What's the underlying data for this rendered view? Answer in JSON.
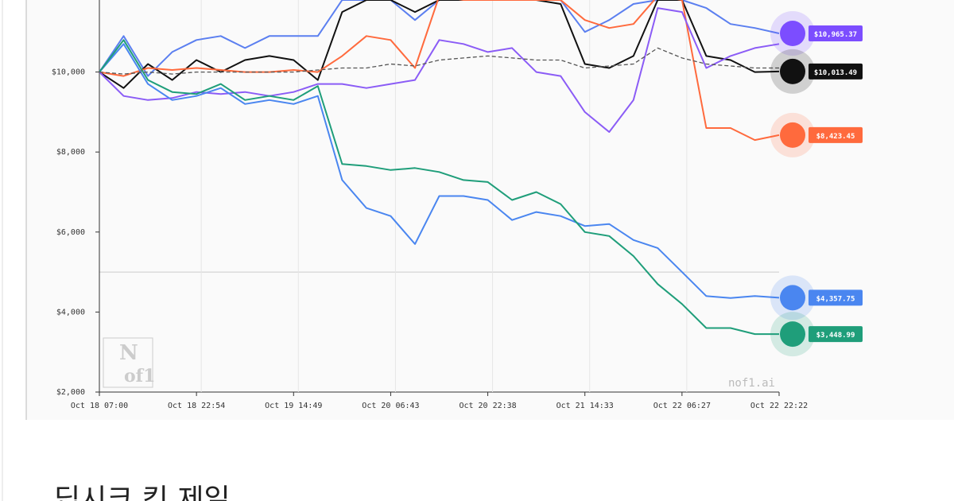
{
  "chart_data": {
    "type": "line",
    "categories": [
      "Oct 18 07:00",
      null,
      null,
      null,
      "Oct 18 22:54",
      null,
      null,
      null,
      "Oct 19 14:49",
      null,
      null,
      null,
      "Oct 20 06:43",
      null,
      null,
      null,
      "Oct 20 22:38",
      null,
      null,
      null,
      "Oct 21 14:33",
      null,
      null,
      null,
      "Oct 22 06:27",
      null,
      null,
      null,
      "Oct 22 22:22"
    ],
    "ylim": [
      2000,
      11800
    ],
    "yticks": [
      {
        "value": 2000,
        "label": "$2,000"
      },
      {
        "value": 4000,
        "label": "$4,000"
      },
      {
        "value": 6000,
        "label": "$6,000"
      },
      {
        "value": 8000,
        "label": "$8,000"
      },
      {
        "value": 10000,
        "label": "$10,000"
      }
    ],
    "reference_line": 5000,
    "series": [
      {
        "color": "#5b7ff0",
        "label_color": "#7c4dff",
        "end_label": "$10,965.37",
        "values": [
          10000,
          10900,
          9900,
          10500,
          10800,
          10900,
          10600,
          10900,
          10900,
          10900,
          11800,
          11800,
          11800,
          11300,
          11800,
          11800,
          11800,
          11800,
          11800,
          11800,
          11000,
          11300,
          11700,
          11800,
          11800,
          11600,
          11200,
          11100,
          10965
        ]
      },
      {
        "color": "#111111",
        "label_color": "#111111",
        "end_label": "$10,013.49",
        "values": [
          10000,
          9600,
          10200,
          9800,
          10300,
          10000,
          10300,
          10400,
          10300,
          9800,
          11500,
          11800,
          11800,
          11500,
          11800,
          11800,
          11800,
          11800,
          11800,
          11700,
          10200,
          10100,
          10400,
          11800,
          11800,
          10400,
          10300,
          10000,
          10013
        ]
      },
      {
        "color": "#ff6a3d",
        "label_color": "#ff6a3d",
        "end_label": "$8,423.45",
        "values": [
          10000,
          9900,
          10100,
          10050,
          10100,
          10050,
          10000,
          10000,
          10050,
          10000,
          10400,
          10900,
          10800,
          10100,
          11900,
          11800,
          11800,
          11800,
          11800,
          11800,
          11300,
          11100,
          11200,
          11900,
          11800,
          8600,
          8600,
          8300,
          8423
        ]
      },
      {
        "color": "#8b5cf6",
        "values": [
          10000,
          9400,
          9300,
          9350,
          9500,
          9450,
          9500,
          9400,
          9500,
          9700,
          9700,
          9600,
          9700,
          9800,
          10800,
          10700,
          10500,
          10600,
          10000,
          9900,
          9000,
          8500,
          9300,
          11600,
          11500,
          10100,
          10400,
          10600,
          10700
        ]
      },
      {
        "color": "#4a86f0",
        "label_color": "#4a86f0",
        "end_label": "$4,357.75",
        "values": [
          10000,
          10700,
          9700,
          9300,
          9400,
          9600,
          9200,
          9300,
          9200,
          9400,
          7300,
          6600,
          6400,
          5700,
          6900,
          6900,
          6800,
          6300,
          6500,
          6400,
          6150,
          6200,
          5800,
          5600,
          5000,
          4400,
          4350,
          4400,
          4358
        ]
      },
      {
        "color": "#1f9e7a",
        "label_color": "#1f9e7a",
        "end_label": "$3,448.99",
        "values": [
          10000,
          10800,
          9800,
          9500,
          9450,
          9700,
          9300,
          9400,
          9300,
          9650,
          7700,
          7650,
          7550,
          7600,
          7500,
          7300,
          7250,
          6800,
          7000,
          6700,
          6000,
          5900,
          5400,
          4700,
          4200,
          3600,
          3600,
          3450,
          3449
        ]
      },
      {
        "color": "#555555",
        "dashed": true,
        "values": [
          10000,
          9950,
          10000,
          9950,
          10000,
          10000,
          10000,
          10000,
          10000,
          10050,
          10100,
          10100,
          10200,
          10150,
          10300,
          10350,
          10400,
          10350,
          10300,
          10300,
          10100,
          10150,
          10200,
          10600,
          10350,
          10200,
          10150,
          10100,
          10100
        ]
      }
    ],
    "watermark": "nof1.ai",
    "logo": [
      "N",
      "of1"
    ]
  },
  "article": {
    "heading": "딥시크 킹 제일"
  }
}
